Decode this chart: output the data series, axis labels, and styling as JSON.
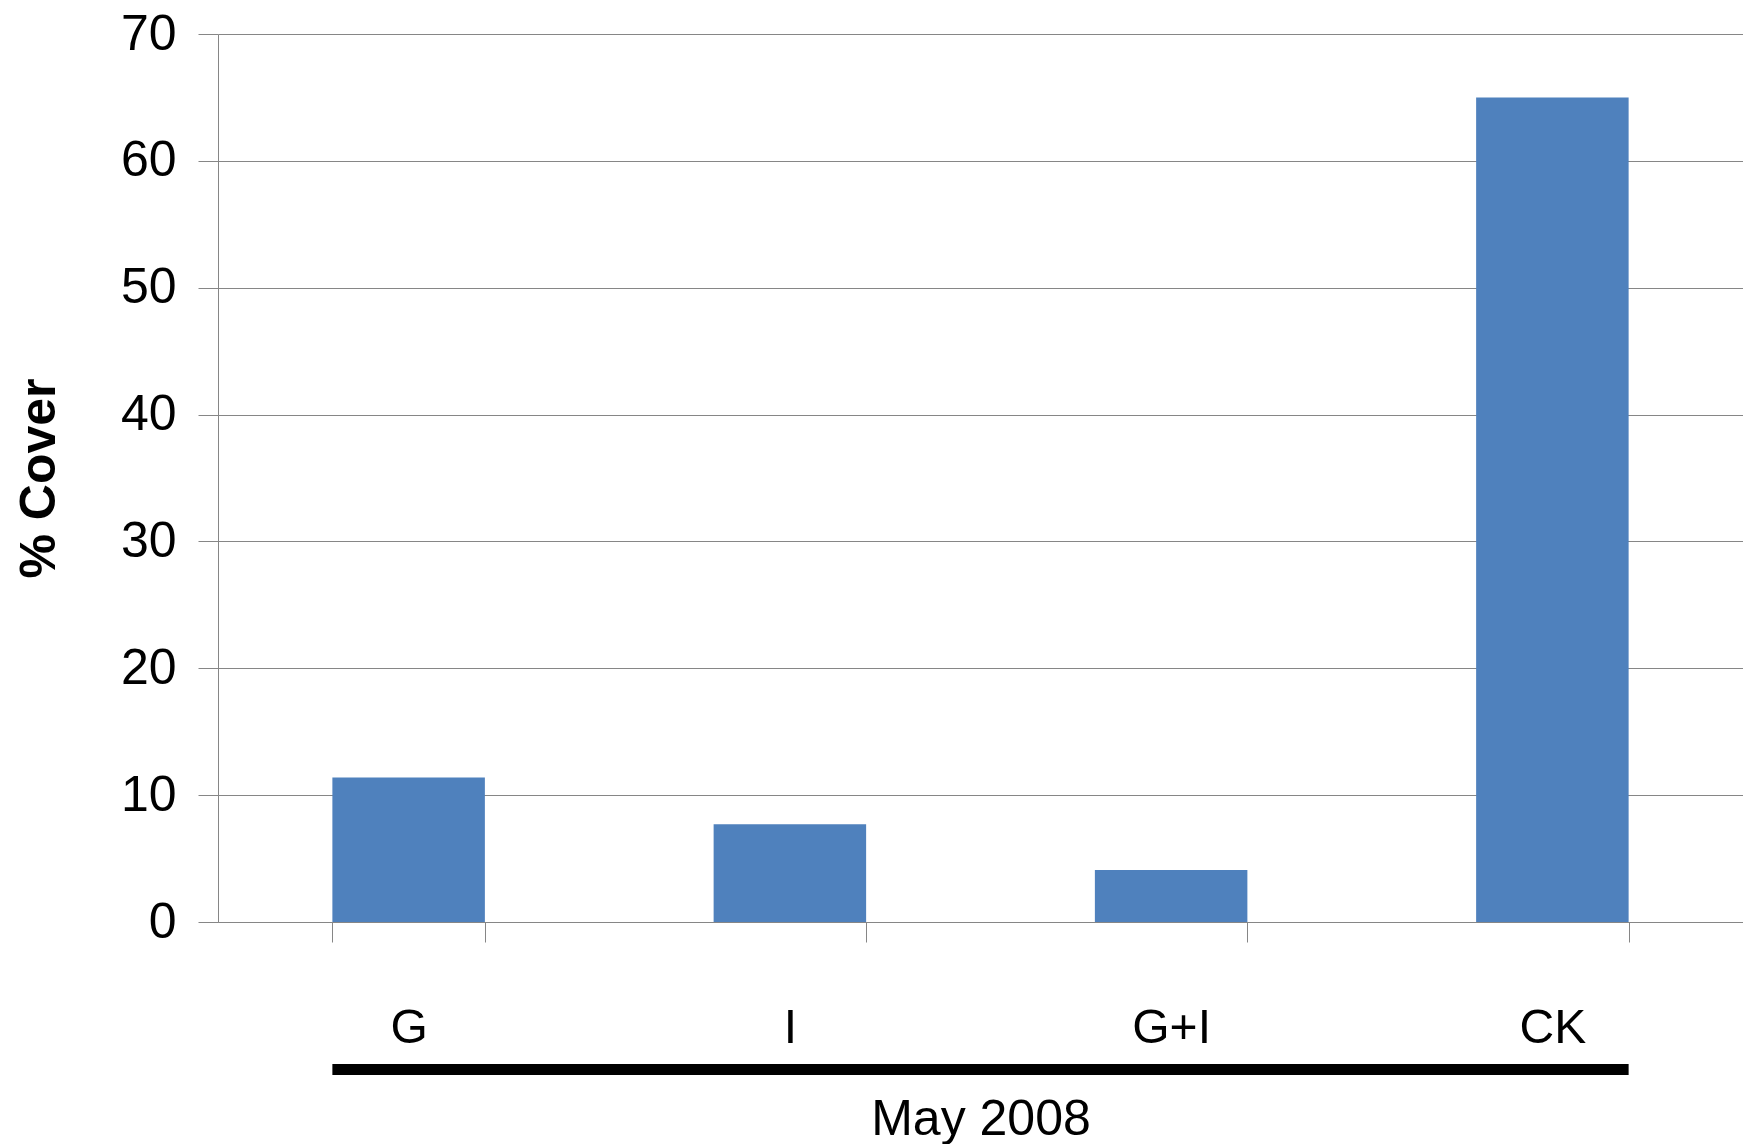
{
  "chart_data": {
    "type": "bar",
    "categories": [
      "G",
      "I",
      "G+I",
      "CK"
    ],
    "values": [
      11.4,
      7.7,
      4.1,
      65.0
    ],
    "color": "#4f81bd",
    "xlabel": "May 2008",
    "ylabel": "% Cover",
    "ylim": [
      0,
      70
    ],
    "yticks": [
      0,
      10,
      20,
      30,
      40,
      50,
      60,
      70
    ],
    "grid": "y"
  }
}
